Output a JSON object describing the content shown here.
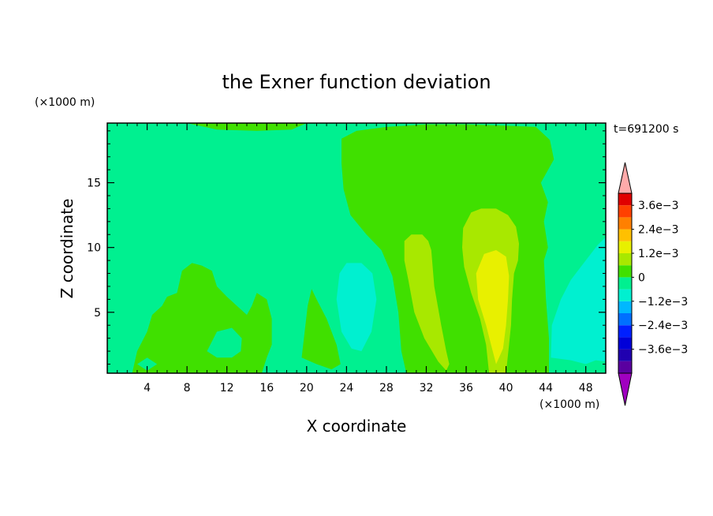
{
  "chart_data": {
    "type": "contour",
    "title": "the Exner function deviation",
    "xlabel": "X coordinate",
    "ylabel": "Z coordinate",
    "x_unit": "(×1000 m)",
    "y_unit": "(×1000 m)",
    "time_label": "t=691200 s",
    "xlim": [
      0,
      50
    ],
    "ylim": [
      0.3,
      19.6
    ],
    "x_ticks": [
      4,
      8,
      12,
      16,
      20,
      24,
      28,
      32,
      36,
      40,
      44,
      48
    ],
    "y_ticks": [
      5,
      10,
      15
    ],
    "colorbar": {
      "levels": [
        -0.0042,
        -0.0036,
        -0.003,
        -0.0024,
        -0.0018,
        -0.0012,
        -0.0006,
        0,
        0.0006,
        0.0012,
        0.0018,
        0.0024,
        0.003,
        0.0036,
        0.0042
      ],
      "colors": [
        "#a000c0",
        "#5a00a0",
        "#2000b0",
        "#0000d8",
        "#0020ff",
        "#0070ff",
        "#00b8ff",
        "#00f0d0",
        "#00f090",
        "#40e000",
        "#a8e800",
        "#e8f000",
        "#ffc000",
        "#ff8000",
        "#ff4000",
        "#e00000",
        "#ffaaaa"
      ],
      "labels": [
        {
          "text": "3.6e−3",
          "value": 0.0036
        },
        {
          "text": "2.4e−3",
          "value": 0.0024
        },
        {
          "text": "1.2e−3",
          "value": 0.0012
        },
        {
          "text": "0",
          "value": 0
        },
        {
          "text": "−1.2e−3",
          "value": -0.0012
        },
        {
          "text": "−2.4e−3",
          "value": -0.0024
        },
        {
          "text": "−3.6e−3",
          "value": -0.0036
        }
      ]
    },
    "background_fill": "#00f090",
    "regions": [
      {
        "name": "top-left-positive",
        "level": 0.0003,
        "color": "#40e000",
        "outline": [
          [
            8,
            19.6
          ],
          [
            20,
            19.6
          ],
          [
            18.5,
            19.1
          ],
          [
            15,
            19.0
          ],
          [
            11,
            19.1
          ],
          [
            8,
            19.6
          ]
        ]
      },
      {
        "name": "upper-right-positive",
        "level": 0.0003,
        "color": "#40e000",
        "outline": [
          [
            23.5,
            18.4
          ],
          [
            25,
            19.0
          ],
          [
            28,
            19.3
          ],
          [
            32,
            19.5
          ],
          [
            36,
            19.5
          ],
          [
            40,
            19.4
          ],
          [
            43,
            19.3
          ],
          [
            44.4,
            18.3
          ],
          [
            44.8,
            16.8
          ],
          [
            43.5,
            15
          ],
          [
            44.2,
            13.5
          ],
          [
            43.8,
            12
          ],
          [
            44.2,
            10
          ],
          [
            43.8,
            9
          ],
          [
            44.0,
            6
          ],
          [
            44.3,
            3
          ],
          [
            44.3,
            0.3
          ],
          [
            30,
            0.3
          ],
          [
            29.5,
            2
          ],
          [
            29.2,
            5
          ],
          [
            28.6,
            7.8
          ],
          [
            27.5,
            9.8
          ],
          [
            26,
            11
          ],
          [
            24.4,
            12.5
          ],
          [
            23.7,
            14.5
          ],
          [
            23.5,
            16.5
          ],
          [
            23.5,
            18.4
          ]
        ]
      },
      {
        "name": "plume-a-level1",
        "level": 0.0009,
        "color": "#a8e800",
        "outline": [
          [
            29.8,
            10.5
          ],
          [
            30.5,
            11.0
          ],
          [
            31.6,
            11.0
          ],
          [
            32.2,
            10.5
          ],
          [
            32.5,
            9.8
          ],
          [
            32.8,
            7.0
          ],
          [
            33.5,
            4.0
          ],
          [
            34.0,
            2.0
          ],
          [
            34.3,
            1.0
          ],
          [
            34.0,
            0.5
          ],
          [
            33.2,
            1.2
          ],
          [
            31.8,
            3.0
          ],
          [
            30.8,
            5.0
          ],
          [
            30.2,
            7.5
          ],
          [
            29.8,
            9.0
          ],
          [
            29.8,
            10.5
          ]
        ]
      },
      {
        "name": "plume-b-level1",
        "level": 0.0009,
        "color": "#a8e800",
        "outline": [
          [
            35.7,
            11.5
          ],
          [
            36.5,
            12.7
          ],
          [
            37.5,
            13.0
          ],
          [
            39,
            13.0
          ],
          [
            40.2,
            12.5
          ],
          [
            41,
            11.6
          ],
          [
            41.3,
            10.3
          ],
          [
            41.2,
            9.0
          ],
          [
            40.8,
            8.0
          ],
          [
            40.6,
            6.0
          ],
          [
            40.5,
            4.0
          ],
          [
            40.3,
            2.5
          ],
          [
            40.0,
            0.3
          ],
          [
            38.3,
            0.3
          ],
          [
            38.0,
            2.5
          ],
          [
            37.4,
            4.5
          ],
          [
            36.5,
            6.5
          ],
          [
            35.8,
            8.5
          ],
          [
            35.6,
            10.0
          ],
          [
            35.7,
            11.5
          ]
        ]
      },
      {
        "name": "plume-b-level2",
        "level": 0.0015,
        "color": "#e8f000",
        "outline": [
          [
            37.0,
            8.0
          ],
          [
            37.8,
            9.5
          ],
          [
            39,
            9.8
          ],
          [
            40.0,
            9.3
          ],
          [
            40.3,
            7.8
          ],
          [
            40.2,
            6.0
          ],
          [
            40.0,
            4.0
          ],
          [
            39.7,
            2.2
          ],
          [
            39.0,
            1.0
          ],
          [
            38.5,
            2.5
          ],
          [
            38.0,
            4.0
          ],
          [
            37.2,
            6.0
          ],
          [
            37.0,
            8.0
          ]
        ]
      },
      {
        "name": "left-positive-blob",
        "level": 0.0003,
        "color": "#40e000",
        "outline": [
          [
            2.5,
            0.3
          ],
          [
            3.0,
            2.0
          ],
          [
            4.0,
            3.5
          ],
          [
            4.5,
            4.8
          ],
          [
            5.5,
            5.5
          ],
          [
            6.0,
            6.2
          ],
          [
            7.0,
            6.5
          ],
          [
            7.5,
            8.2
          ],
          [
            8.5,
            8.8
          ],
          [
            9.5,
            8.6
          ],
          [
            10.5,
            8.2
          ],
          [
            11.0,
            7.0
          ],
          [
            12.0,
            6.2
          ],
          [
            13.0,
            5.5
          ],
          [
            14.0,
            4.8
          ],
          [
            14.5,
            5.5
          ],
          [
            15.0,
            6.5
          ],
          [
            16.0,
            6.0
          ],
          [
            16.5,
            4.5
          ],
          [
            16.5,
            2.5
          ],
          [
            16.0,
            1.5
          ],
          [
            15.5,
            0.3
          ],
          [
            2.5,
            0.3
          ]
        ]
      },
      {
        "name": "left-negative-hole-1",
        "level": -0.0003,
        "color": "#00f090",
        "outline": [
          [
            10.0,
            2.0
          ],
          [
            11.0,
            3.5
          ],
          [
            12.5,
            3.8
          ],
          [
            13.5,
            3.0
          ],
          [
            13.4,
            2.0
          ],
          [
            12.5,
            1.5
          ],
          [
            11.0,
            1.5
          ],
          [
            10.0,
            2.0
          ]
        ]
      },
      {
        "name": "left-negative-hole-2",
        "level": -0.0003,
        "color": "#00f090",
        "outline": [
          [
            3.0,
            1.0
          ],
          [
            4.0,
            1.5
          ],
          [
            5.0,
            1.0
          ],
          [
            4.0,
            0.5
          ],
          [
            3.0,
            1.0
          ]
        ]
      },
      {
        "name": "mid-positive-blob",
        "level": 0.0003,
        "color": "#40e000",
        "outline": [
          [
            19.5,
            1.5
          ],
          [
            19.8,
            3.5
          ],
          [
            20.1,
            5.5
          ],
          [
            20.5,
            6.8
          ],
          [
            21.0,
            6.0
          ],
          [
            22.0,
            4.5
          ],
          [
            23.0,
            2.5
          ],
          [
            23.4,
            1.0
          ],
          [
            22.5,
            0.6
          ],
          [
            21.0,
            1.0
          ],
          [
            19.5,
            1.5
          ]
        ]
      },
      {
        "name": "mid-negative-blob",
        "level": -0.0006,
        "color": "#00f0d0",
        "outline": [
          [
            23.3,
            8.0
          ],
          [
            24.0,
            8.8
          ],
          [
            25.5,
            8.8
          ],
          [
            26.6,
            8.0
          ],
          [
            27.0,
            6.0
          ],
          [
            26.5,
            3.5
          ],
          [
            25.5,
            2.0
          ],
          [
            24.5,
            2.2
          ],
          [
            23.5,
            3.5
          ],
          [
            23.0,
            6.0
          ],
          [
            23.3,
            8.0
          ]
        ]
      },
      {
        "name": "right-negative-blob",
        "level": -0.0006,
        "color": "#00f0d0",
        "outline": [
          [
            44.5,
            1.5
          ],
          [
            44.6,
            4.0
          ],
          [
            45.5,
            6.0
          ],
          [
            46.5,
            7.5
          ],
          [
            47.5,
            8.5
          ],
          [
            48.5,
            9.5
          ],
          [
            49.2,
            10.2
          ],
          [
            50,
            10.8
          ],
          [
            50,
            1.2
          ],
          [
            49.0,
            1.3
          ],
          [
            48.0,
            1.0
          ],
          [
            46.5,
            1.3
          ],
          [
            44.5,
            1.5
          ]
        ]
      }
    ]
  }
}
